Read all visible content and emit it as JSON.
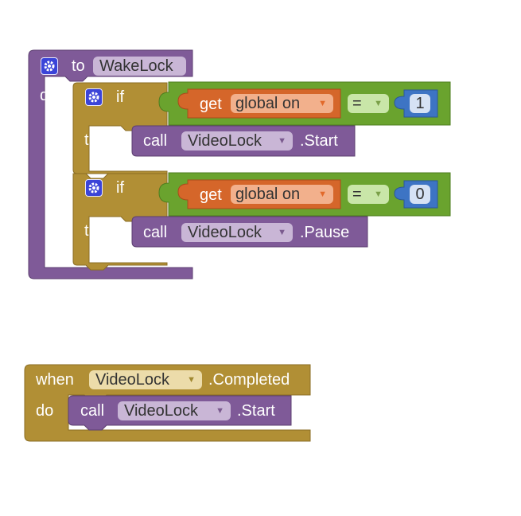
{
  "procedure": {
    "to_label": "to",
    "name": "WakeLock",
    "do_label": "do",
    "if_blocks": [
      {
        "if_label": "if",
        "then_label": "then",
        "get_label": "get",
        "variable": "global on",
        "operator": "=",
        "number": "1",
        "call_label": "call",
        "component": "VideoLock",
        "method": ".Start"
      },
      {
        "if_label": "if",
        "then_label": "then",
        "get_label": "get",
        "variable": "global on",
        "operator": "=",
        "number": "0",
        "call_label": "call",
        "component": "VideoLock",
        "method": ".Pause"
      }
    ]
  },
  "event": {
    "when_label": "when",
    "component": "VideoLock",
    "event_name": ".Completed",
    "do_label": "do",
    "call_label": "call",
    "call_component": "VideoLock",
    "method": ".Start"
  },
  "icons": {
    "mutator": "gear-icon",
    "dropdown": "triangle-down-icon"
  },
  "colors": {
    "procedure": "#7f5a98",
    "control": "#b18f35",
    "logic": "#6aa32e",
    "variable": "#d5662a",
    "number": "#3d74c4",
    "event": "#b18f35"
  }
}
